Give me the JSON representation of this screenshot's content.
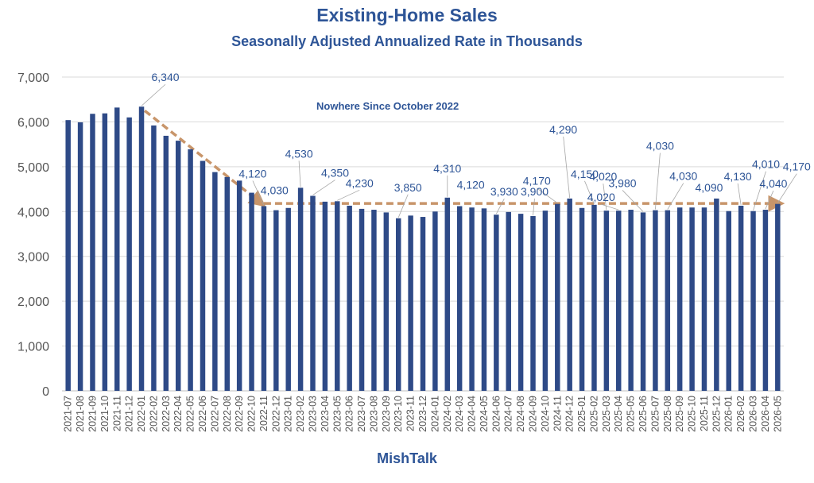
{
  "header": {
    "title": "Existing-Home Sales",
    "subtitle": "Seasonally Adjusted Annualized Rate in Thousands"
  },
  "footer": {
    "source": "MishTalk"
  },
  "colors": {
    "bar": "#2E4A87",
    "title": "#2E5597",
    "label": "#2E5597",
    "trend": "#C8956A",
    "grid": "#D9D9D9",
    "axis_text": "#555555"
  },
  "chart_data": {
    "type": "bar",
    "title": "Existing-Home Sales",
    "subtitle": "Seasonally Adjusted Annualized Rate in Thousands",
    "xlabel": "",
    "ylabel": "",
    "ylim": [
      0,
      7000
    ],
    "yticks": [
      0,
      1000,
      2000,
      3000,
      4000,
      5000,
      6000,
      7000
    ],
    "ytick_labels": [
      "0",
      "1,000",
      "2,000",
      "3,000",
      "4,000",
      "5,000",
      "6,000",
      "7,000"
    ],
    "grid": true,
    "legend": "none",
    "categories": [
      "2021-07",
      "2021-08",
      "2021-09",
      "2021-10",
      "2021-11",
      "2021-12",
      "2022-01",
      "2022-02",
      "2022-03",
      "2022-04",
      "2022-05",
      "2022-06",
      "2022-07",
      "2022-08",
      "2022-09",
      "2022-10",
      "2022-11",
      "2022-12",
      "2023-01",
      "2023-02",
      "2023-03",
      "2023-04",
      "2023-05",
      "2023-06",
      "2023-07",
      "2023-08",
      "2023-09",
      "2023-10",
      "2023-11",
      "2023-12",
      "2024-01",
      "2024-02",
      "2024-03",
      "2024-04",
      "2024-05",
      "2024-06",
      "2024-07",
      "2024-08",
      "2024-09",
      "2024-10",
      "2024-11",
      "2024-12",
      "2025-01",
      "2025-02",
      "2025-03",
      "2025-04",
      "2025-05",
      "2025-06",
      "2025-07",
      "2025-08",
      "2025-09",
      "2025-10",
      "2025-11",
      "2025-12",
      "2026-01",
      "2026-02",
      "2026-03",
      "2026-04",
      "2026-05"
    ],
    "values": [
      6040,
      5990,
      6180,
      6190,
      6320,
      6100,
      6340,
      5920,
      5690,
      5580,
      5390,
      5130,
      4880,
      4770,
      4690,
      4420,
      4120,
      4030,
      4080,
      4530,
      4350,
      4220,
      4230,
      4130,
      4060,
      4040,
      3980,
      3850,
      3910,
      3880,
      4000,
      4310,
      4120,
      4090,
      4070,
      3930,
      3990,
      3950,
      3900,
      4020,
      4170,
      4290,
      4080,
      4150,
      4020,
      4020,
      4040,
      3980,
      4030,
      4030,
      4090,
      4090,
      4090,
      4290,
      4010,
      4130,
      4010,
      4040,
      4170
    ],
    "data_labels": [
      {
        "category": "2022-01",
        "text": "6,340"
      },
      {
        "category": "2022-11",
        "text": "4,120"
      },
      {
        "category": "2022-12",
        "text": "4,030"
      },
      {
        "category": "2023-02",
        "text": "4,530"
      },
      {
        "category": "2023-03",
        "text": "4,350"
      },
      {
        "category": "2023-05",
        "text": "4,230"
      },
      {
        "category": "2023-10",
        "text": "3,850"
      },
      {
        "category": "2024-02",
        "text": "4,310"
      },
      {
        "category": "2024-03",
        "text": "4,120"
      },
      {
        "category": "2024-06",
        "text": "3,930"
      },
      {
        "category": "2024-09",
        "text": "3,900"
      },
      {
        "category": "2024-11",
        "text": "4,170"
      },
      {
        "category": "2024-12",
        "text": "4,290"
      },
      {
        "category": "2025-02",
        "text": "4,150"
      },
      {
        "category": "2025-03",
        "text": "4,020"
      },
      {
        "category": "2025-04",
        "text": "4,020"
      },
      {
        "category": "2025-06",
        "text": "3,980"
      },
      {
        "category": "2025-07",
        "text": "4,030"
      },
      {
        "category": "2025-08",
        "text": "4,030"
      },
      {
        "category": "2025-11",
        "text": "4,090"
      },
      {
        "category": "2026-02",
        "text": "4,130"
      },
      {
        "category": "2026-03",
        "text": "4,010"
      },
      {
        "category": "2026-04",
        "text": "4,040"
      },
      {
        "category": "2026-05",
        "text": "4,170"
      }
    ],
    "annotations": [
      {
        "text": "Nowhere Since October 2022"
      }
    ],
    "trend_lines": [
      {
        "from": {
          "category": "2022-01",
          "value": 6250
        },
        "to": {
          "category": "2022-11",
          "value": 4180
        }
      },
      {
        "from": {
          "category": "2022-11",
          "value": 4180
        },
        "to": {
          "category": "2026-05",
          "value": 4180
        }
      }
    ]
  }
}
